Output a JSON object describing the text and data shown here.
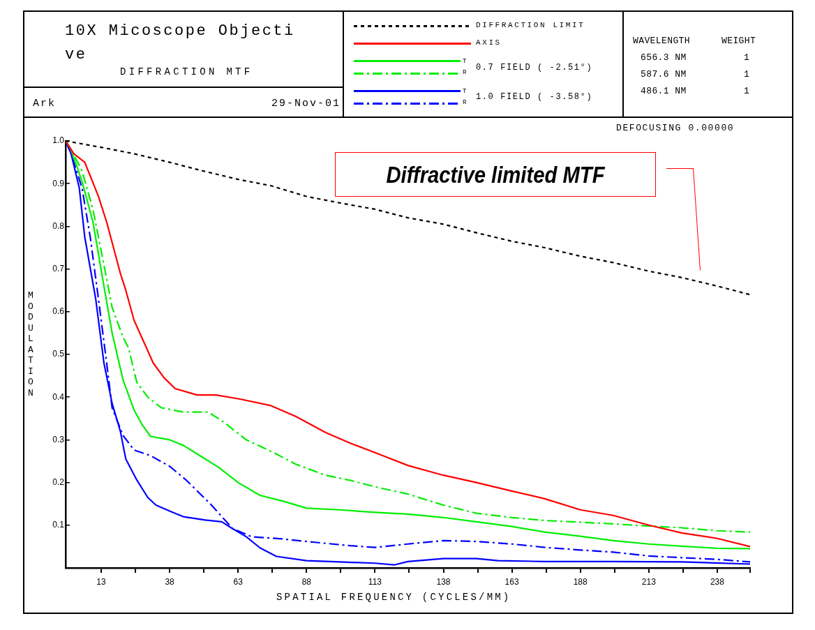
{
  "chart_data": {
    "type": "line",
    "title": "10X Micoscope Objective",
    "subtitle": "DIFFRACTION MTF",
    "xlabel": "SPATIAL FREQUENCY (CYCLES/MM)",
    "ylabel": "MODULATION",
    "xlim": [
      0,
      250
    ],
    "ylim": [
      0,
      1
    ],
    "xticks": [
      13,
      {
        "value": 25.5,
        "label": null
      },
      38,
      {
        "value": 50.5,
        "label": null
      },
      63,
      {
        "value": 75.5,
        "label": null
      },
      88,
      {
        "value": 100.5,
        "label": null
      },
      113,
      {
        "value": 125.5,
        "label": null
      },
      138,
      {
        "value": 150.5,
        "label": null
      },
      163,
      {
        "value": 175.5,
        "label": null
      },
      188,
      {
        "value": 200.5,
        "label": null
      },
      213,
      {
        "value": 225.5,
        "label": null
      },
      238,
      {
        "value": 250,
        "label": null
      }
    ],
    "yticks": [
      0.1,
      0.2,
      0.3,
      0.4,
      0.5,
      0.6,
      0.7,
      0.8,
      0.9,
      {
        "value": 1,
        "label": "1.0"
      }
    ],
    "grid": false,
    "legend": "top",
    "marker": "none",
    "series": [
      {
        "name": "DIFFRACTION LIMIT",
        "color": "#000000",
        "line_style": "dashed",
        "x": [
          0,
          13,
          25,
          38,
          50,
          63,
          75,
          88,
          100,
          113,
          125,
          138,
          150,
          163,
          175,
          188,
          200,
          213,
          225,
          238,
          250
        ],
        "values": [
          1.0,
          0.985,
          0.97,
          0.95,
          0.93,
          0.91,
          0.895,
          0.87,
          0.855,
          0.84,
          0.82,
          0.805,
          0.785,
          0.765,
          0.75,
          0.73,
          0.715,
          0.695,
          0.68,
          0.66,
          0.64
        ]
      },
      {
        "name": "AXIS",
        "color": "#ff0000",
        "line_style": "solid",
        "x": [
          0,
          3,
          7,
          12,
          15,
          20,
          22,
          25,
          32,
          36,
          40,
          48,
          55,
          64,
          75,
          84,
          95,
          104,
          113,
          125,
          138,
          150,
          163,
          175,
          188,
          200,
          213,
          225,
          238,
          250
        ],
        "values": [
          1.0,
          0.97,
          0.95,
          0.87,
          0.81,
          0.69,
          0.65,
          0.58,
          0.48,
          0.445,
          0.42,
          0.405,
          0.405,
          0.395,
          0.38,
          0.355,
          0.317,
          0.292,
          0.27,
          0.24,
          0.217,
          0.2,
          0.18,
          0.162,
          0.136,
          0.123,
          0.1,
          0.082,
          0.069,
          0.05
        ]
      },
      {
        "name": "T",
        "color": "#00ee00",
        "line_style": "solid",
        "x": [
          0,
          2,
          6,
          10,
          14,
          17,
          21,
          25,
          28,
          31,
          38,
          43,
          49,
          56,
          63,
          71,
          79,
          88,
          100,
          113,
          125,
          138,
          150,
          163,
          175,
          188,
          200,
          213,
          225,
          238,
          250
        ],
        "values": [
          1.0,
          0.98,
          0.905,
          0.81,
          0.66,
          0.55,
          0.44,
          0.37,
          0.335,
          0.308,
          0.3,
          0.287,
          0.263,
          0.235,
          0.2,
          0.17,
          0.157,
          0.14,
          0.136,
          0.13,
          0.126,
          0.118,
          0.108,
          0.097,
          0.084,
          0.074,
          0.064,
          0.056,
          0.051,
          0.046,
          0.045
        ]
      },
      {
        "name": "R",
        "color": "#00ee00",
        "line_style": "dashdot",
        "x": [
          0,
          2,
          6,
          10,
          14,
          17,
          21,
          23,
          26,
          30,
          35,
          43,
          52,
          57,
          66,
          76,
          84,
          95,
          104,
          113,
          125,
          138,
          150,
          163,
          175,
          188,
          200,
          213,
          225,
          238,
          250
        ],
        "values": [
          1.0,
          0.98,
          0.93,
          0.84,
          0.71,
          0.61,
          0.54,
          0.515,
          0.435,
          0.4,
          0.375,
          0.365,
          0.365,
          0.345,
          0.3,
          0.27,
          0.243,
          0.217,
          0.205,
          0.19,
          0.173,
          0.147,
          0.128,
          0.118,
          0.111,
          0.107,
          0.103,
          0.098,
          0.094,
          0.087,
          0.084
        ]
      },
      {
        "name": "T",
        "color": "#0000ff",
        "line_style": "solid",
        "x": [
          0,
          2,
          5,
          7,
          11,
          14,
          17,
          20,
          21,
          22,
          26,
          30,
          33,
          38,
          43,
          51,
          57,
          61,
          66,
          71,
          77,
          88,
          100,
          113,
          120,
          125,
          138,
          150,
          158,
          175,
          200,
          225,
          250
        ],
        "values": [
          1.0,
          0.97,
          0.89,
          0.775,
          0.63,
          0.48,
          0.385,
          0.32,
          0.287,
          0.255,
          0.206,
          0.165,
          0.147,
          0.133,
          0.12,
          0.112,
          0.108,
          0.092,
          0.073,
          0.047,
          0.027,
          0.017,
          0.014,
          0.011,
          0.007,
          0.015,
          0.022,
          0.022,
          0.017,
          0.015,
          0.015,
          0.014,
          0.009
        ]
      },
      {
        "name": "R",
        "color": "#0000ff",
        "line_style": "dashdot",
        "x": [
          0,
          2,
          6,
          9,
          12,
          15,
          17,
          21,
          25,
          31,
          38,
          44,
          53,
          61,
          68,
          79,
          91,
          104,
          113,
          125,
          138,
          150,
          163,
          175,
          188,
          200,
          213,
          225,
          238,
          250
        ],
        "values": [
          1.0,
          0.97,
          0.89,
          0.775,
          0.63,
          0.48,
          0.375,
          0.31,
          0.276,
          0.263,
          0.238,
          0.206,
          0.149,
          0.092,
          0.073,
          0.068,
          0.06,
          0.052,
          0.048,
          0.056,
          0.064,
          0.062,
          0.056,
          0.048,
          0.042,
          0.037,
          0.028,
          0.024,
          0.02,
          0.014
        ]
      }
    ],
    "annotations": [
      "Ark",
      "29-Nov-01",
      "0.7 FIELD ( -2.51°)",
      "1.0 FIELD ( -3.58°)",
      "WAVELENGTH",
      "WEIGHT",
      "656.3 NM",
      "1",
      "587.6 NM",
      "1",
      "486.1 NM",
      "1",
      "DEFOCUSING 0.00000",
      "Diffractive limited MTF"
    ]
  }
}
